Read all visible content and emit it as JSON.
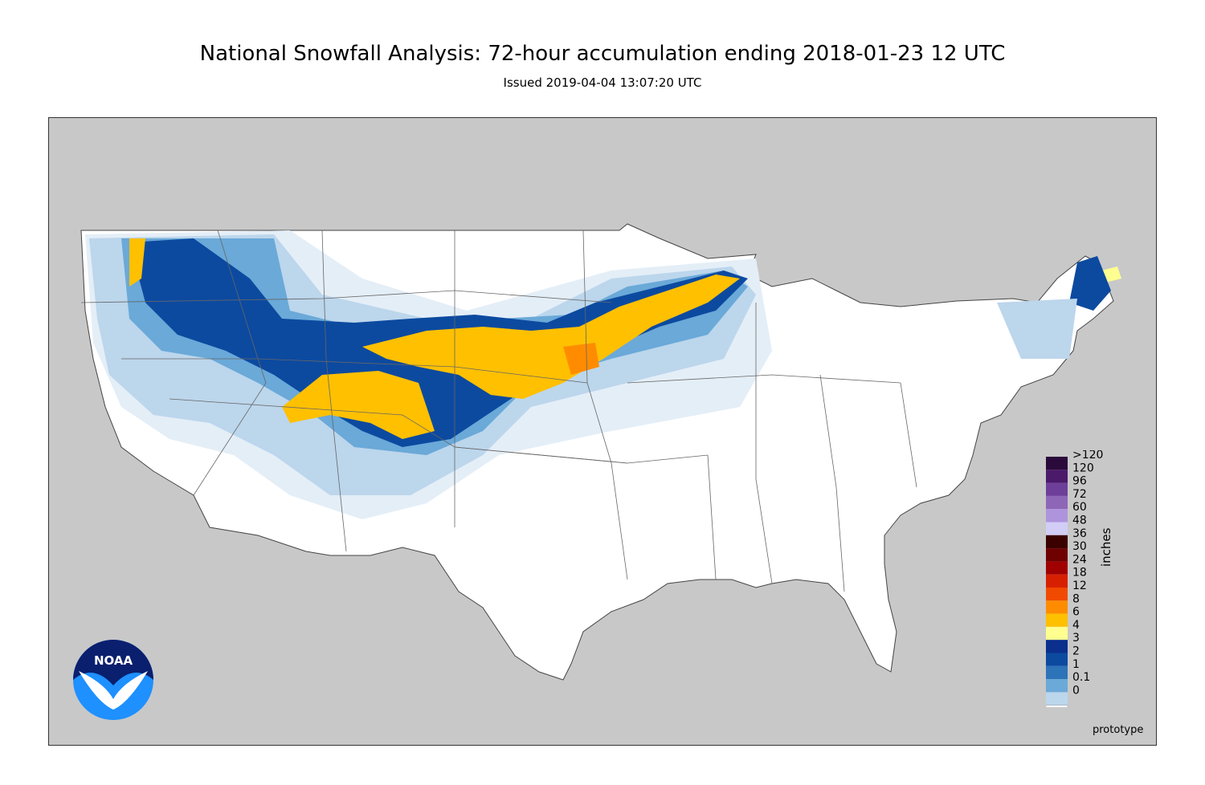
{
  "header": {
    "title": "National Snowfall Analysis: 72-hour accumulation ending 2018-01-23 12 UTC",
    "subtitle": "Issued 2019-04-04 13:07:20 UTC"
  },
  "legend": {
    "unit_label": "inches",
    "entries": [
      {
        "label": ">120",
        "color": "#2a0a3a"
      },
      {
        "label": "120",
        "color": "#4b1a6b"
      },
      {
        "label": "96",
        "color": "#6e3f9a"
      },
      {
        "label": "72",
        "color": "#8e66b8"
      },
      {
        "label": "60",
        "color": "#ad94dc"
      },
      {
        "label": "48",
        "color": "#d2cdf6"
      },
      {
        "label": "36",
        "color": "#3a0000"
      },
      {
        "label": "30",
        "color": "#6e0000"
      },
      {
        "label": "24",
        "color": "#a00000"
      },
      {
        "label": "18",
        "color": "#d62000"
      },
      {
        "label": "12",
        "color": "#f04a00"
      },
      {
        "label": "8",
        "color": "#ff8c00"
      },
      {
        "label": "6",
        "color": "#ffc000"
      },
      {
        "label": "4",
        "color": "#ffff90"
      },
      {
        "label": "3",
        "color": "#0a2f8c"
      },
      {
        "label": "2",
        "color": "#0c4aa0"
      },
      {
        "label": "1",
        "color": "#2c73b8"
      },
      {
        "label": "0.1",
        "color": "#6aa9d8"
      },
      {
        "label": "0",
        "color": "#bcd6ec"
      }
    ],
    "base_color": "#ffffff",
    "extra_color": "#e4eef7"
  },
  "footer": {
    "note": "prototype"
  },
  "logo": {
    "text": "NOAA",
    "colors": {
      "dark": "#0a1f6e",
      "light": "#1e90ff"
    }
  },
  "colors": {
    "land_outside": "#c8c8c8",
    "us_land": "#ffffff",
    "border": "#555555"
  }
}
